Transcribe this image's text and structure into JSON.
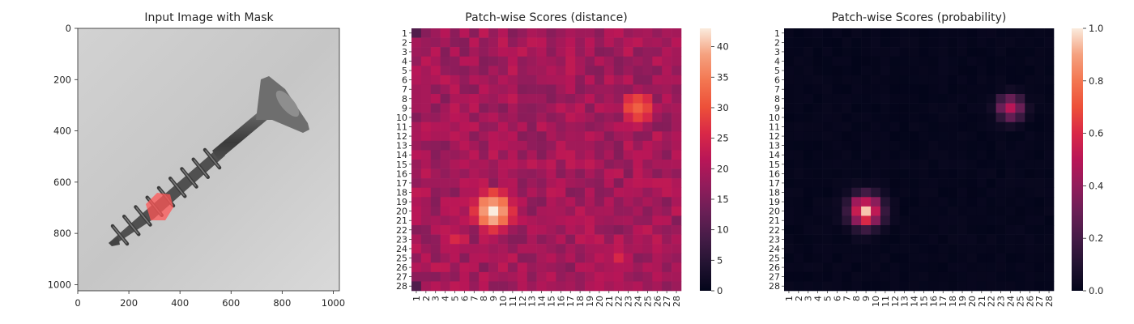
{
  "chart_data": [
    {
      "type": "image",
      "title": "Input Image with Mask",
      "xlim": [
        0,
        1024
      ],
      "ylim": [
        1024,
        0
      ],
      "xticks": [
        0,
        200,
        400,
        600,
        800,
        1000
      ],
      "yticks": [
        0,
        200,
        400,
        600,
        800,
        1000
      ],
      "mask_color": "#ff5555",
      "subject": "screw-with-red-mask-overlay"
    },
    {
      "type": "heatmap",
      "title": "Patch-wise Scores (distance)",
      "rows": 28,
      "cols": 28,
      "tick_labels": [
        "1",
        "2",
        "3",
        "4",
        "5",
        "6",
        "7",
        "8",
        "9",
        "10",
        "11",
        "12",
        "13",
        "14",
        "15",
        "16",
        "17",
        "18",
        "19",
        "20",
        "21",
        "22",
        "23",
        "24",
        "25",
        "26",
        "27",
        "28"
      ],
      "colorbar": {
        "min": 0,
        "max": 43,
        "ticks": [
          0,
          5,
          10,
          15,
          20,
          25,
          30,
          35,
          40
        ]
      },
      "background_level": 19,
      "hotspots": [
        {
          "row": 20,
          "col": 9,
          "peak": 43,
          "sigma": 2.1
        },
        {
          "row": 9,
          "col": 24,
          "peak": 32,
          "sigma": 2.0
        },
        {
          "row": 23,
          "col": 5,
          "peak": 26,
          "sigma": 1.8
        },
        {
          "row": 25,
          "col": 22,
          "peak": 24,
          "sigma": 2.0
        }
      ]
    },
    {
      "type": "heatmap",
      "title": "Patch-wise Scores (probability)",
      "rows": 28,
      "cols": 28,
      "tick_labels": [
        "1",
        "2",
        "3",
        "4",
        "5",
        "6",
        "7",
        "8",
        "9",
        "10",
        "11",
        "12",
        "13",
        "14",
        "15",
        "16",
        "17",
        "18",
        "19",
        "20",
        "21",
        "22",
        "23",
        "24",
        "25",
        "26",
        "27",
        "28"
      ],
      "colorbar": {
        "min": 0,
        "max": 1,
        "ticks": [
          0.0,
          0.2,
          0.4,
          0.6,
          0.8,
          1.0
        ],
        "tick_labels": [
          "0.0",
          "0.2",
          "0.4",
          "0.6",
          "0.8",
          "1.0"
        ]
      },
      "hotspots": [
        {
          "row": 20,
          "col": 9,
          "peak": 0.85,
          "sigma": 1.1
        },
        {
          "row": 9,
          "col": 24,
          "peak": 0.5,
          "sigma": 0.9
        }
      ]
    }
  ]
}
